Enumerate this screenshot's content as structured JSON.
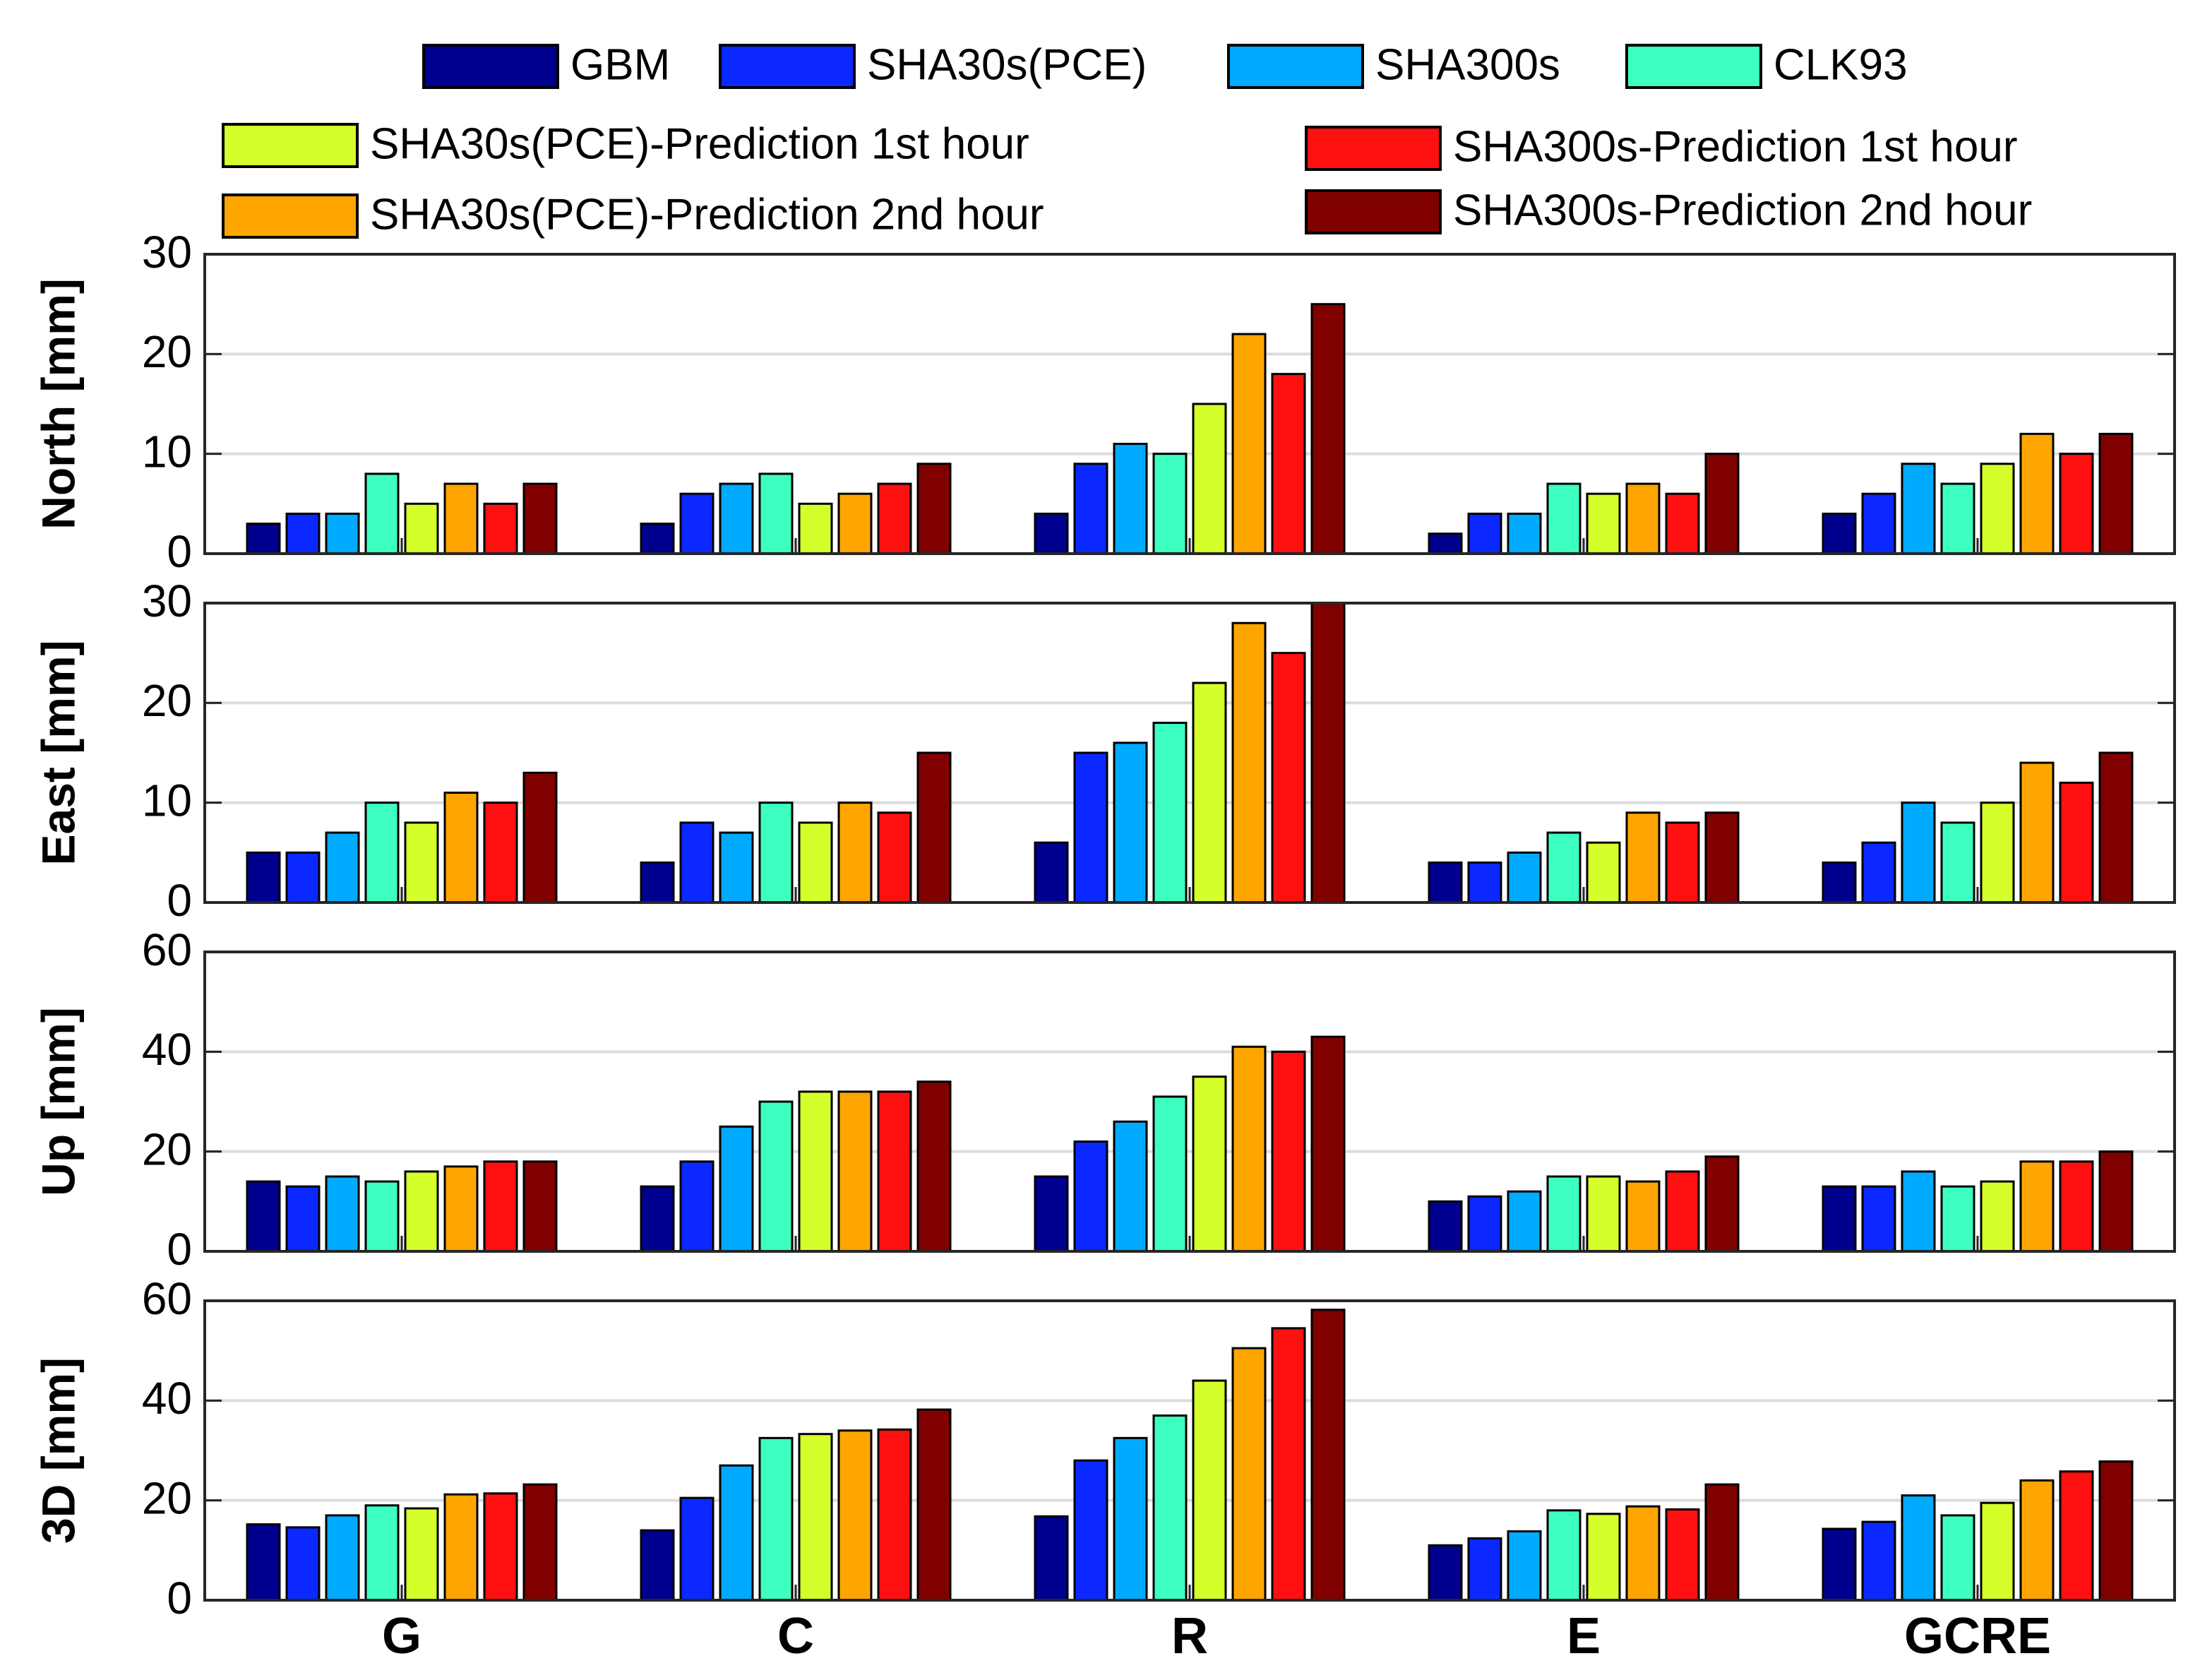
{
  "chart_data": [
    {
      "type": "bar",
      "ylabel": "North [mm]",
      "categories": [
        "G",
        "C",
        "R",
        "E",
        "GCRE"
      ],
      "ylim": [
        0,
        30
      ],
      "yticks": [
        0,
        10,
        20,
        30
      ],
      "grid": true,
      "series": [
        {
          "name": "GBM",
          "color": "#00008f",
          "values": [
            3,
            3,
            4,
            2,
            4
          ]
        },
        {
          "name": "SHA30s(PCE)",
          "color": "#0a28ff",
          "values": [
            4,
            6,
            9,
            4,
            6
          ]
        },
        {
          "name": "SHA300s",
          "color": "#00aaff",
          "values": [
            4,
            7,
            11,
            4,
            9
          ]
        },
        {
          "name": "CLK93",
          "color": "#3dffc2",
          "values": [
            8,
            8,
            10,
            7,
            7
          ]
        },
        {
          "name": "SHA30s(PCE)-Prediction 1st hour",
          "color": "#d4ff2b",
          "values": [
            5,
            5,
            15,
            6,
            9
          ]
        },
        {
          "name": "SHA30s(PCE)-Prediction 2nd hour",
          "color": "#ffa500",
          "values": [
            7,
            6,
            22,
            7,
            12
          ]
        },
        {
          "name": "SHA300s-Prediction 1st hour",
          "color": "#ff1010",
          "values": [
            5,
            7,
            18,
            6,
            10
          ]
        },
        {
          "name": "SHA300s-Prediction 2nd hour",
          "color": "#800000",
          "values": [
            7,
            9,
            25,
            10,
            12
          ]
        }
      ]
    },
    {
      "type": "bar",
      "ylabel": "East [mm]",
      "categories": [
        "G",
        "C",
        "R",
        "E",
        "GCRE"
      ],
      "ylim": [
        0,
        30
      ],
      "yticks": [
        0,
        10,
        20,
        30
      ],
      "grid": true,
      "series": [
        {
          "name": "GBM",
          "color": "#00008f",
          "values": [
            5,
            4,
            6,
            4,
            4
          ]
        },
        {
          "name": "SHA30s(PCE)",
          "color": "#0a28ff",
          "values": [
            5,
            8,
            15,
            4,
            6
          ]
        },
        {
          "name": "SHA300s",
          "color": "#00aaff",
          "values": [
            7,
            7,
            16,
            5,
            10
          ]
        },
        {
          "name": "CLK93",
          "color": "#3dffc2",
          "values": [
            10,
            10,
            18,
            7,
            8
          ]
        },
        {
          "name": "SHA30s(PCE)-Prediction 1st hour",
          "color": "#d4ff2b",
          "values": [
            8,
            8,
            22,
            6,
            10
          ]
        },
        {
          "name": "SHA30s(PCE)-Prediction 2nd hour",
          "color": "#ffa500",
          "values": [
            11,
            10,
            28,
            9,
            14
          ]
        },
        {
          "name": "SHA300s-Prediction 1st hour",
          "color": "#ff1010",
          "values": [
            10,
            9,
            25,
            8,
            12
          ]
        },
        {
          "name": "SHA300s-Prediction 2nd hour",
          "color": "#800000",
          "values": [
            13,
            15,
            30,
            9,
            15
          ]
        }
      ]
    },
    {
      "type": "bar",
      "ylabel": "Up [mm]",
      "categories": [
        "G",
        "C",
        "R",
        "E",
        "GCRE"
      ],
      "ylim": [
        0,
        60
      ],
      "yticks": [
        0,
        20,
        40,
        60
      ],
      "grid": true,
      "series": [
        {
          "name": "GBM",
          "color": "#00008f",
          "values": [
            14,
            13,
            15,
            10,
            13
          ]
        },
        {
          "name": "SHA30s(PCE)",
          "color": "#0a28ff",
          "values": [
            13,
            18,
            22,
            11,
            13
          ]
        },
        {
          "name": "SHA300s",
          "color": "#00aaff",
          "values": [
            15,
            25,
            26,
            12,
            16
          ]
        },
        {
          "name": "CLK93",
          "color": "#3dffc2",
          "values": [
            14,
            30,
            31,
            15,
            13
          ]
        },
        {
          "name": "SHA30s(PCE)-Prediction 1st hour",
          "color": "#d4ff2b",
          "values": [
            16,
            32,
            35,
            15,
            14
          ]
        },
        {
          "name": "SHA30s(PCE)-Prediction 2nd hour",
          "color": "#ffa500",
          "values": [
            17,
            32,
            41,
            14,
            18
          ]
        },
        {
          "name": "SHA300s-Prediction 1st hour",
          "color": "#ff1010",
          "values": [
            18,
            32,
            40,
            16,
            18
          ]
        },
        {
          "name": "SHA300s-Prediction 2nd hour",
          "color": "#800000",
          "values": [
            18,
            34,
            43,
            19,
            20
          ]
        }
      ]
    },
    {
      "type": "bar",
      "ylabel": "3D [mm]",
      "categories": [
        "G",
        "C",
        "R",
        "E",
        "GCRE"
      ],
      "ylim": [
        0,
        60
      ],
      "yticks": [
        0,
        20,
        40,
        60
      ],
      "grid": true,
      "series": [
        {
          "name": "GBM",
          "color": "#00008f",
          "values": [
            15.2,
            14,
            16.8,
            11,
            14.3
          ]
        },
        {
          "name": "SHA30s(PCE)",
          "color": "#0a28ff",
          "values": [
            14.6,
            20.5,
            28,
            12.4,
            15.7
          ]
        },
        {
          "name": "SHA300s",
          "color": "#00aaff",
          "values": [
            17,
            27,
            32.5,
            13.8,
            21
          ]
        },
        {
          "name": "CLK93",
          "color": "#3dffc2",
          "values": [
            19,
            32.5,
            37,
            18,
            17
          ]
        },
        {
          "name": "SHA30s(PCE)-Prediction 1st hour",
          "color": "#d4ff2b",
          "values": [
            18.4,
            33.3,
            44,
            17.3,
            19.5
          ]
        },
        {
          "name": "SHA30s(PCE)-Prediction 2nd hour",
          "color": "#ffa500",
          "values": [
            21.2,
            34,
            50.5,
            18.8,
            24
          ]
        },
        {
          "name": "SHA300s-Prediction 1st hour",
          "color": "#ff1010",
          "values": [
            21.4,
            34.2,
            54.5,
            18.2,
            25.8
          ]
        },
        {
          "name": "SHA300s-Prediction 2nd hour",
          "color": "#800000",
          "values": [
            23.2,
            38.2,
            58.2,
            23.2,
            27.8
          ]
        }
      ]
    }
  ]
}
